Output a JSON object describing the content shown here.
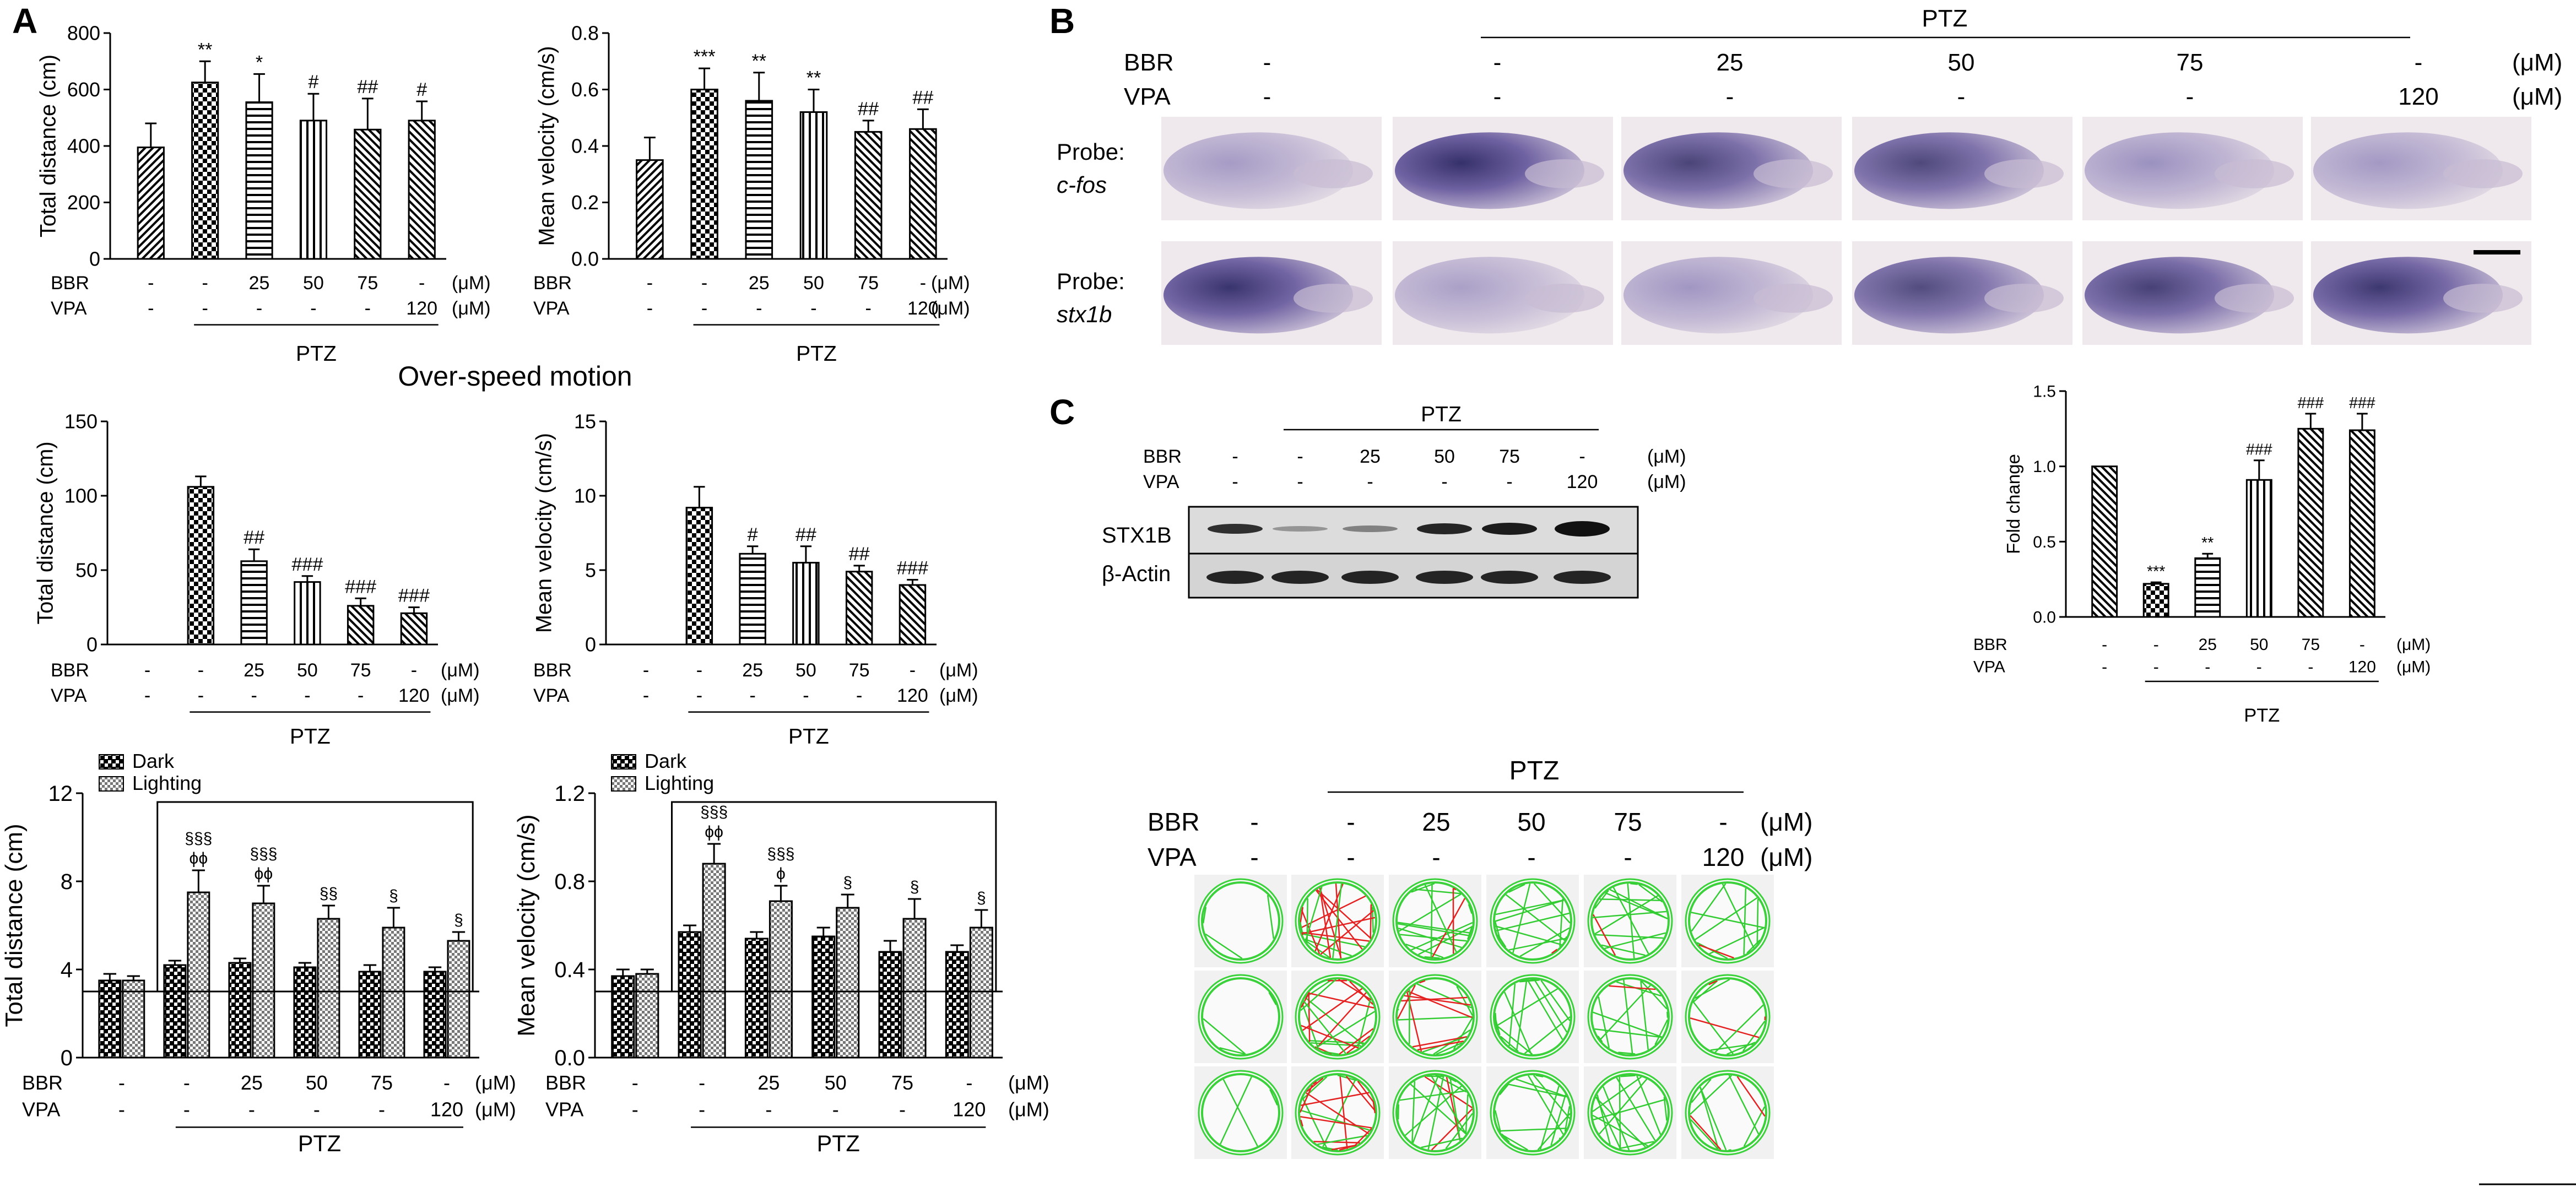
{
  "panel_labels": [
    "A",
    "B",
    "C"
  ],
  "common": {
    "bbr_label": "BBR",
    "vpa_label": "VPA",
    "unit": "(μM)",
    "ptz_label": "PTZ",
    "bbr_values": [
      "-",
      "-",
      "25",
      "50",
      "75",
      "-"
    ],
    "vpa_values": [
      "-",
      "-",
      "-",
      "-",
      "-",
      "120"
    ]
  },
  "section_title": "Over-speed motion",
  "legend": {
    "dark": "Dark",
    "lighting": "Lighting"
  },
  "chart_data": [
    {
      "id": "A1",
      "type": "bar",
      "ylabel": "Total distance (cm)",
      "ylim": [
        0,
        800
      ],
      "yticks": [
        "0",
        "200",
        "400",
        "600",
        "800"
      ],
      "values": [
        395,
        625,
        555,
        490,
        458,
        490
      ],
      "errors": [
        85,
        75,
        100,
        95,
        110,
        68
      ],
      "annotations": [
        "",
        "**",
        "*",
        "#",
        "##",
        "#"
      ]
    },
    {
      "id": "A2",
      "type": "bar",
      "ylabel": "Mean velocity (cm/s)",
      "ylim": [
        0,
        0.8
      ],
      "yticks": [
        "0.0",
        "0.2",
        "0.4",
        "0.6",
        "0.8"
      ],
      "values": [
        0.35,
        0.6,
        0.56,
        0.52,
        0.45,
        0.46
      ],
      "errors": [
        0.08,
        0.075,
        0.1,
        0.08,
        0.04,
        0.07
      ],
      "annotations": [
        "",
        "***",
        "**",
        "**",
        "##",
        "##"
      ]
    },
    {
      "id": "A3",
      "type": "bar",
      "ylabel": "Total distance (cm)",
      "ylim": [
        0,
        150
      ],
      "yticks": [
        "0",
        "50",
        "100",
        "150"
      ],
      "values": [
        0,
        106,
        56,
        42,
        26,
        21
      ],
      "errors": [
        0,
        7,
        8,
        4,
        5,
        4
      ],
      "annotations": [
        "",
        "",
        "##",
        "###",
        "###",
        "###"
      ]
    },
    {
      "id": "A4",
      "type": "bar",
      "ylabel": "Mean velocity (cm/s)",
      "ylim": [
        0,
        15
      ],
      "yticks": [
        "0",
        "5",
        "10",
        "15"
      ],
      "values": [
        0,
        9.2,
        6.1,
        5.5,
        4.9,
        4.0
      ],
      "errors": [
        0,
        1.4,
        0.5,
        1.1,
        0.4,
        0.35
      ],
      "annotations": [
        "",
        "",
        "#",
        "##",
        "##",
        "###"
      ]
    },
    {
      "id": "A5",
      "type": "grouped-bar",
      "ylabel": "Total distance (cm)",
      "ylim": [
        0,
        12
      ],
      "yticks": [
        "0",
        "4",
        "8",
        "12"
      ],
      "series": [
        {
          "name": "Dark",
          "values": [
            3.5,
            4.2,
            4.3,
            4.1,
            3.9,
            3.9
          ],
          "errors": [
            0.3,
            0.2,
            0.2,
            0.2,
            0.3,
            0.2
          ]
        },
        {
          "name": "Lighting",
          "values": [
            3.5,
            7.5,
            7.0,
            6.3,
            5.9,
            5.3
          ],
          "errors": [
            0.2,
            1.0,
            0.8,
            0.6,
            0.9,
            0.4
          ]
        }
      ],
      "annotations": [
        [
          "",
          ""
        ],
        [
          "§§§",
          "ϕϕ"
        ],
        [
          "§§§",
          "ϕϕ"
        ],
        [
          "§§",
          ""
        ],
        [
          "§",
          ""
        ],
        [
          "§",
          ""
        ]
      ],
      "box": {
        "y_top": 11.6,
        "y_bottom": 3.0
      }
    },
    {
      "id": "A6",
      "type": "grouped-bar",
      "ylabel": "Mean velocity (cm/s)",
      "ylim": [
        0,
        1.2
      ],
      "yticks": [
        "0.0",
        "0.4",
        "0.8",
        "1.2"
      ],
      "series": [
        {
          "name": "Dark",
          "values": [
            0.37,
            0.57,
            0.54,
            0.55,
            0.48,
            0.48
          ],
          "errors": [
            0.03,
            0.03,
            0.03,
            0.04,
            0.05,
            0.03
          ]
        },
        {
          "name": "Lighting",
          "values": [
            0.38,
            0.88,
            0.71,
            0.68,
            0.63,
            0.59
          ],
          "errors": [
            0.02,
            0.09,
            0.07,
            0.06,
            0.09,
            0.08
          ]
        }
      ],
      "annotations": [
        [
          "",
          ""
        ],
        [
          "§§§",
          "ϕϕ"
        ],
        [
          "§§§",
          "ϕ"
        ],
        [
          "§",
          ""
        ],
        [
          "§",
          ""
        ],
        [
          "§",
          ""
        ]
      ],
      "box": {
        "y_top": 1.16,
        "y_bottom": 0.3
      }
    },
    {
      "id": "C2",
      "type": "bar",
      "ylabel": "Fold change",
      "ylim": [
        0,
        1.5
      ],
      "yticks": [
        "0.0",
        "0.5",
        "1.0",
        "1.5"
      ],
      "values": [
        1.0,
        0.22,
        0.39,
        0.91,
        1.25,
        1.24
      ],
      "errors": [
        0,
        0.01,
        0.03,
        0.13,
        0.1,
        0.11
      ],
      "annotations": [
        "",
        "***",
        "**",
        "###",
        "###",
        "###"
      ]
    }
  ],
  "panelB": {
    "probe_label": "Probe:",
    "probes": [
      "c-fos",
      "stx1b"
    ],
    "bbr_values": [
      "-",
      "-",
      "25",
      "50",
      "75",
      "-"
    ],
    "vpa_values": [
      "-",
      "-",
      "-",
      "-",
      "-",
      "120"
    ]
  },
  "panelC": {
    "bands": [
      "STX1B",
      "β-Actin"
    ]
  }
}
